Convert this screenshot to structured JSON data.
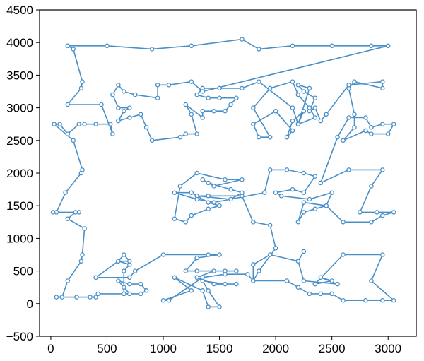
{
  "chart_data": {
    "type": "line",
    "title": "",
    "xlabel": "",
    "ylabel": "",
    "xlim": [
      -100,
      3250
    ],
    "ylim": [
      -500,
      4500
    ],
    "x_ticks": [
      0,
      500,
      1000,
      1500,
      2000,
      2500,
      3000
    ],
    "y_ticks": [
      -500,
      0,
      500,
      1000,
      1500,
      2000,
      2500,
      3000,
      3500,
      4000,
      4500
    ],
    "grid": false,
    "legend": "none",
    "colors": {
      "line": "#4a90c8",
      "marker_edge": "#4a90c8",
      "marker_fill": "#ffffff"
    },
    "series": [
      {
        "closed": true,
        "points": [
          [
            3000,
            3950
          ],
          [
            2850,
            3950
          ],
          [
            2500,
            3950
          ],
          [
            2150,
            3950
          ],
          [
            1850,
            3900
          ],
          [
            1700,
            4050
          ],
          [
            1250,
            3950
          ],
          [
            900,
            3900
          ],
          [
            500,
            3950
          ],
          [
            150,
            3950
          ],
          [
            200,
            3900
          ],
          [
            280,
            3400
          ],
          [
            270,
            3300
          ],
          [
            150,
            3050
          ],
          [
            450,
            3050
          ],
          [
            550,
            2600
          ],
          [
            530,
            2750
          ],
          [
            400,
            2750
          ],
          [
            300,
            2750
          ],
          [
            250,
            2750
          ],
          [
            150,
            2600
          ],
          [
            80,
            2750
          ],
          [
            30,
            2750
          ],
          [
            200,
            2500
          ],
          [
            280,
            2050
          ],
          [
            270,
            2000
          ],
          [
            130,
            1700
          ],
          [
            50,
            1400
          ],
          [
            20,
            1400
          ],
          [
            250,
            1400
          ],
          [
            220,
            1400
          ],
          [
            150,
            1300
          ],
          [
            300,
            1150
          ],
          [
            280,
            750
          ],
          [
            270,
            650
          ],
          [
            150,
            350
          ],
          [
            100,
            100
          ],
          [
            50,
            100
          ],
          [
            230,
            100
          ],
          [
            350,
            100
          ],
          [
            400,
            100
          ],
          [
            420,
            150
          ],
          [
            650,
            150
          ],
          [
            700,
            150
          ],
          [
            650,
            250
          ],
          [
            600,
            350
          ],
          [
            700,
            300
          ],
          [
            800,
            300
          ],
          [
            850,
            200
          ],
          [
            800,
            150
          ],
          [
            650,
            150
          ],
          [
            650,
            500
          ],
          [
            700,
            600
          ],
          [
            600,
            650
          ],
          [
            650,
            750
          ],
          [
            700,
            650
          ],
          [
            600,
            650
          ],
          [
            400,
            400
          ],
          [
            700,
            400
          ],
          [
            750,
            500
          ],
          [
            1000,
            750
          ],
          [
            1400,
            750
          ],
          [
            1500,
            750
          ],
          [
            1300,
            700
          ],
          [
            1200,
            500
          ],
          [
            1300,
            500
          ],
          [
            1550,
            500
          ],
          [
            1650,
            500
          ],
          [
            1450,
            500
          ],
          [
            1300,
            400
          ],
          [
            1450,
            300
          ],
          [
            1650,
            300
          ],
          [
            1550,
            300
          ],
          [
            1350,
            350
          ],
          [
            1400,
            200
          ],
          [
            1500,
            -50
          ],
          [
            1400,
            -50
          ],
          [
            1350,
            200
          ],
          [
            1100,
            400
          ],
          [
            1250,
            200
          ],
          [
            1000,
            50
          ],
          [
            1050,
            50
          ],
          [
            1350,
            400
          ],
          [
            1550,
            450
          ],
          [
            1750,
            450
          ],
          [
            1800,
            350
          ],
          [
            2100,
            350
          ],
          [
            2200,
            250
          ],
          [
            2300,
            150
          ],
          [
            2400,
            150
          ],
          [
            2500,
            150
          ],
          [
            2600,
            50
          ],
          [
            2800,
            50
          ],
          [
            2950,
            50
          ],
          [
            3050,
            50
          ],
          [
            2850,
            350
          ],
          [
            2950,
            750
          ],
          [
            2600,
            750
          ],
          [
            2350,
            300
          ],
          [
            2500,
            350
          ],
          [
            2400,
            400
          ],
          [
            2550,
            300
          ],
          [
            2250,
            350
          ],
          [
            2200,
            650
          ],
          [
            2250,
            800
          ],
          [
            2200,
            650
          ],
          [
            1950,
            750
          ],
          [
            1800,
            600
          ],
          [
            1800,
            350
          ],
          [
            1850,
            500
          ],
          [
            2000,
            850
          ],
          [
            1950,
            1200
          ],
          [
            1800,
            1250
          ],
          [
            1700,
            1650
          ],
          [
            1400,
            1650
          ],
          [
            1300,
            1650
          ],
          [
            1600,
            1600
          ],
          [
            1700,
            1700
          ],
          [
            1600,
            1750
          ],
          [
            1400,
            1850
          ],
          [
            1350,
            1900
          ],
          [
            1450,
            1800
          ],
          [
            1700,
            1900
          ],
          [
            1550,
            1900
          ],
          [
            1300,
            2000
          ],
          [
            1150,
            1800
          ],
          [
            1100,
            1300
          ],
          [
            1200,
            1250
          ],
          [
            1250,
            1350
          ],
          [
            1400,
            1450
          ],
          [
            1500,
            1500
          ],
          [
            1400,
            1550
          ],
          [
            1250,
            1700
          ],
          [
            1100,
            1700
          ],
          [
            1300,
            1600
          ],
          [
            1450,
            1550
          ],
          [
            1900,
            1700
          ],
          [
            1950,
            2050
          ],
          [
            2100,
            2050
          ],
          [
            2250,
            2000
          ],
          [
            2350,
            1950
          ],
          [
            2250,
            1700
          ],
          [
            2150,
            1750
          ],
          [
            2000,
            1700
          ],
          [
            2050,
            1650
          ],
          [
            2300,
            1600
          ],
          [
            2500,
            1700
          ],
          [
            2450,
            1500
          ],
          [
            2350,
            1450
          ],
          [
            2250,
            1400
          ],
          [
            2200,
            1250
          ],
          [
            2250,
            1550
          ],
          [
            2450,
            1500
          ],
          [
            2600,
            1250
          ],
          [
            2850,
            1250
          ],
          [
            2950,
            1350
          ],
          [
            3050,
            1400
          ],
          [
            2900,
            1400
          ],
          [
            2750,
            1400
          ],
          [
            2850,
            1800
          ],
          [
            2950,
            2050
          ],
          [
            2650,
            2050
          ],
          [
            2400,
            1850
          ],
          [
            2550,
            2550
          ],
          [
            2650,
            2850
          ],
          [
            2800,
            2850
          ],
          [
            2850,
            2700
          ],
          [
            2950,
            2750
          ],
          [
            3050,
            2750
          ],
          [
            3000,
            2600
          ],
          [
            2850,
            2600
          ],
          [
            2800,
            2650
          ],
          [
            2600,
            2500
          ],
          [
            2700,
            2700
          ],
          [
            2700,
            2900
          ],
          [
            2650,
            3300
          ],
          [
            2700,
            3400
          ],
          [
            2950,
            3300
          ],
          [
            2950,
            3400
          ],
          [
            2650,
            3350
          ],
          [
            2450,
            2900
          ],
          [
            2400,
            2800
          ],
          [
            2350,
            3000
          ],
          [
            2300,
            2950
          ],
          [
            2350,
            3150
          ],
          [
            2250,
            3250
          ],
          [
            2200,
            3350
          ],
          [
            2300,
            3300
          ],
          [
            2200,
            2750
          ],
          [
            2250,
            2950
          ],
          [
            2150,
            2800
          ],
          [
            2100,
            2550
          ],
          [
            2150,
            2650
          ],
          [
            2000,
            2950
          ],
          [
            1800,
            2750
          ],
          [
            1850,
            2550
          ],
          [
            1950,
            2550
          ],
          [
            1800,
            3000
          ],
          [
            1950,
            3300
          ],
          [
            2150,
            3400
          ],
          [
            2200,
            3200
          ],
          [
            2300,
            3000
          ],
          [
            2350,
            2850
          ],
          [
            2200,
            2750
          ],
          [
            2150,
            3000
          ],
          [
            1850,
            3400
          ],
          [
            1700,
            3300
          ],
          [
            1500,
            3300
          ],
          [
            1350,
            3300
          ],
          [
            1300,
            3200
          ],
          [
            1400,
            3150
          ],
          [
            1500,
            3150
          ],
          [
            1650,
            3150
          ],
          [
            1600,
            3050
          ],
          [
            1550,
            2950
          ],
          [
            1450,
            2950
          ],
          [
            1350,
            2950
          ],
          [
            1350,
            2850
          ],
          [
            1200,
            3050
          ],
          [
            1250,
            2900
          ],
          [
            1300,
            2600
          ],
          [
            1200,
            2600
          ],
          [
            1150,
            2550
          ],
          [
            900,
            2500
          ],
          [
            850,
            2700
          ],
          [
            800,
            2900
          ],
          [
            700,
            2850
          ],
          [
            600,
            2800
          ],
          [
            650,
            2950
          ],
          [
            700,
            3000
          ],
          [
            600,
            3000
          ],
          [
            550,
            3200
          ],
          [
            600,
            3350
          ],
          [
            650,
            3250
          ],
          [
            750,
            3200
          ],
          [
            950,
            3150
          ],
          [
            950,
            3350
          ],
          [
            1050,
            3350
          ],
          [
            1250,
            3400
          ],
          [
            1350,
            3250
          ]
        ]
      }
    ]
  }
}
